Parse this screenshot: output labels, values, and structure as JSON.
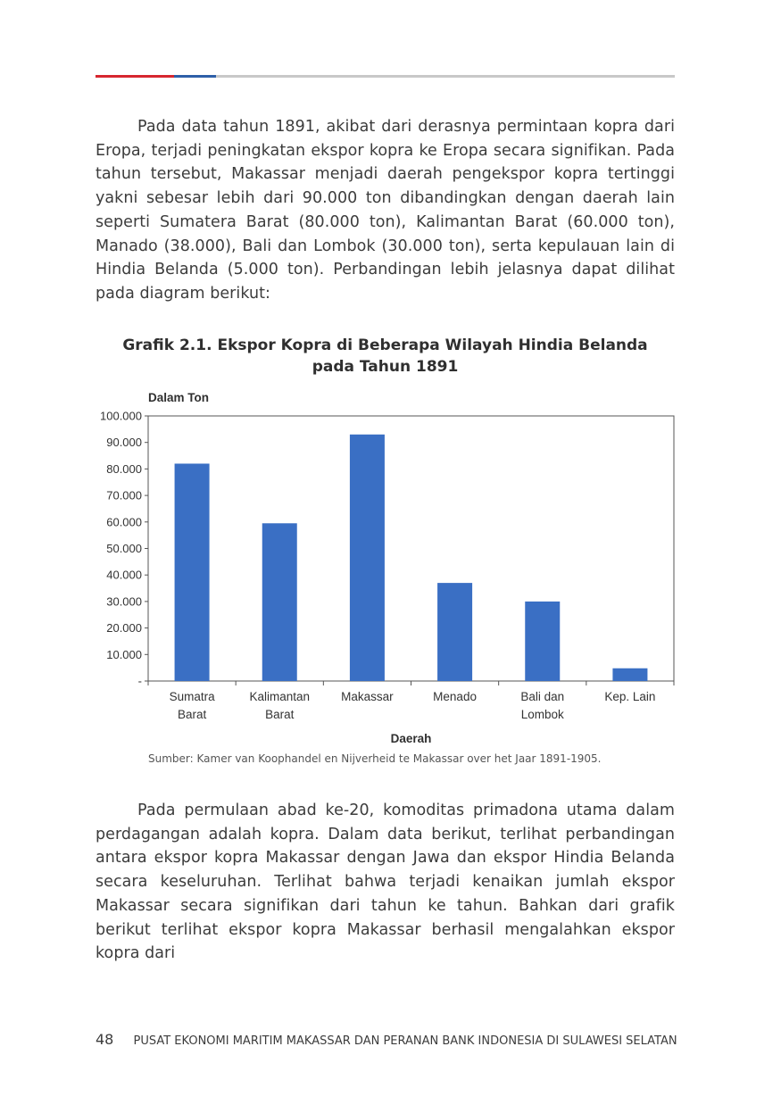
{
  "paragraphs": {
    "p1": "Pada data tahun 1891, akibat dari derasnya permintaan kopra dari Eropa, terjadi peningkatan ekspor kopra ke Eropa secara signifikan. Pada tahun tersebut, Makassar menjadi daerah pengekspor kopra tertinggi yakni sebesar lebih dari 90.000 ton dibandingkan dengan daerah lain seperti Sumatera Barat (80.000 ton), Kalimantan Barat (60.000 ton), Manado (38.000), Bali dan Lombok (30.000 ton), serta kepulauan lain di Hindia Belanda (5.000 ton). Perbandingan lebih jelasnya dapat dilihat pada diagram berikut:",
    "p2": "Pada permulaan abad ke-20, komoditas primadona utama dalam perdagangan adalah kopra. Dalam data berikut, terlihat perbandingan antara ekspor kopra Makassar dengan Jawa dan ekspor Hindia Belanda secara keseluruhan. Terlihat bahwa terjadi kenaikan jumlah ekspor Makassar secara signifikan dari tahun ke tahun. Bahkan dari grafik berikut terlihat ekspor kopra Makassar berhasil mengalahkan ekspor kopra dari"
  },
  "chart_title_line1": "Grafik 2.1. Ekspor Kopra di Beberapa Wilayah Hindia Belanda",
  "chart_title_line2": "pada Tahun 1891",
  "source": "Sumber: Kamer van Koophandel en Nijverheid te Makassar over het Jaar 1891-1905.",
  "footer": {
    "page_number": "48",
    "running_title": "PUSAT EKONOMI MARITIM MAKASSAR DAN PERANAN BANK INDONESIA DI SULAWESI SELATAN"
  },
  "colors": {
    "bar": "#3a6fc4",
    "accent_red": "#d7262f",
    "accent_blue": "#2e5fa8"
  },
  "chart_data": {
    "type": "bar",
    "title": "Grafik 2.1. Ekspor Kopra di Beberapa Wilayah Hindia Belanda pada Tahun 1891",
    "ylabel": "Dalam Ton",
    "xlabel": "Daerah",
    "categories": [
      [
        "Sumatra",
        "Barat"
      ],
      [
        "Kalimantan",
        "Barat"
      ],
      [
        "Makassar"
      ],
      [
        "Menado"
      ],
      [
        "Bali dan",
        "Lombok"
      ],
      [
        "Kep. Lain"
      ]
    ],
    "values": [
      82000,
      59500,
      93000,
      37000,
      30000,
      4800
    ],
    "ylim": [
      0,
      100000
    ],
    "yticks": [
      0,
      10000,
      20000,
      30000,
      40000,
      50000,
      60000,
      70000,
      80000,
      90000,
      100000
    ],
    "ytick_labels": [
      "-",
      "10.000",
      "20.000",
      "30.000",
      "40.000",
      "50.000",
      "60.000",
      "70.000",
      "80.000",
      "90.000",
      "100.000"
    ],
    "grid": false,
    "legend": "none"
  }
}
